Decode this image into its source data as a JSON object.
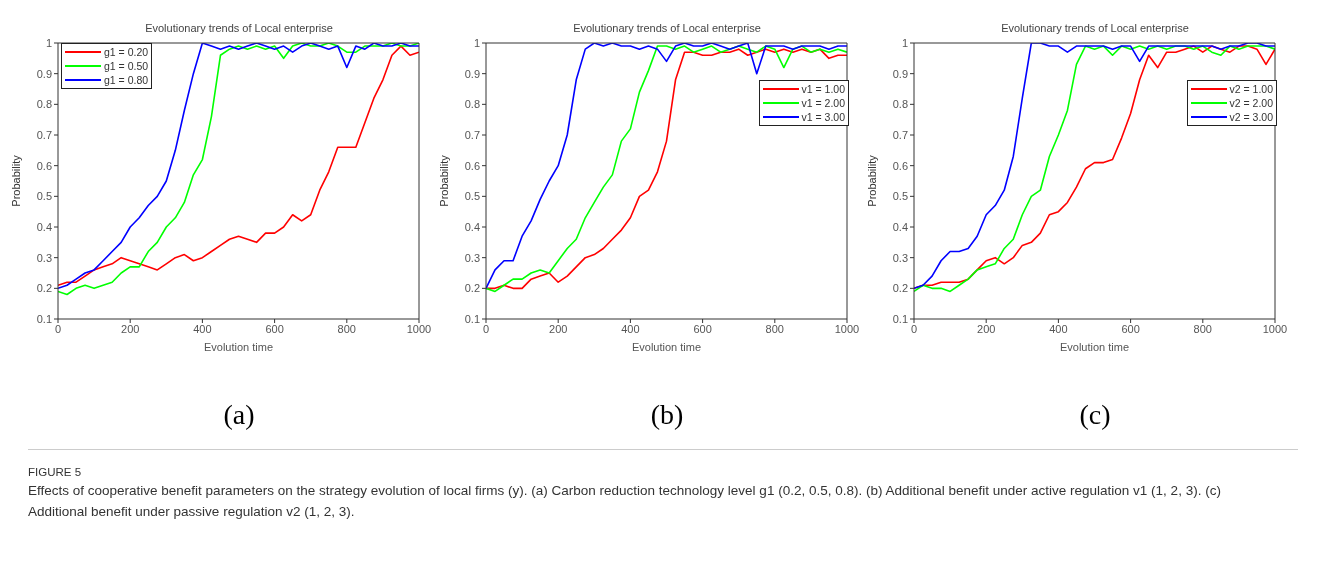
{
  "chart_data": [
    {
      "type": "line",
      "title": "Evolutionary trends of Local enterprise",
      "xlabel": "Evolution time",
      "ylabel": "Probability",
      "annotations": [
        "(a)",
        "FIGURE 5",
        "Effects of cooperative benefit parameters on the strategy evolution of local firms (y). (a) Carbon reduction technology level g1 (0.2, 0.5, 0.8). (b) Additional benefit under active regulation v1 (1, 2, 3). (c) Additional benefit under passive regulation v2 (1, 2, 3)."
      ],
      "x": [
        0,
        25,
        50,
        75,
        100,
        125,
        150,
        175,
        200,
        225,
        250,
        275,
        300,
        325,
        350,
        375,
        400,
        425,
        450,
        475,
        500,
        525,
        550,
        575,
        600,
        625,
        650,
        675,
        700,
        725,
        750,
        775,
        800,
        825,
        850,
        875,
        900,
        925,
        950,
        975,
        1000
      ],
      "xlim": [
        0,
        1000
      ],
      "xticks": [
        0,
        200,
        400,
        600,
        800,
        1000
      ],
      "ylim": [
        0.1,
        1
      ],
      "yticks": [
        0.1,
        0.2,
        0.3,
        0.4,
        0.5,
        0.6,
        0.7,
        0.8,
        0.9,
        1
      ],
      "grid": false,
      "legend": "top left",
      "marker": "none",
      "line_style": "solid",
      "series": [
        {
          "name": "g1 = 0.20",
          "color": "#ff0000",
          "values": [
            0.21,
            0.22,
            0.22,
            0.24,
            0.26,
            0.27,
            0.28,
            0.3,
            0.29,
            0.28,
            0.27,
            0.26,
            0.28,
            0.3,
            0.31,
            0.29,
            0.3,
            0.32,
            0.34,
            0.36,
            0.37,
            0.36,
            0.35,
            0.38,
            0.38,
            0.4,
            0.44,
            0.42,
            0.44,
            0.52,
            0.58,
            0.66,
            0.66,
            0.66,
            0.74,
            0.82,
            0.88,
            0.96,
            0.99,
            0.96,
            0.97
          ]
        },
        {
          "name": "g1 = 0.50",
          "color": "#00ff00",
          "values": [
            0.19,
            0.18,
            0.2,
            0.21,
            0.2,
            0.21,
            0.22,
            0.25,
            0.27,
            0.27,
            0.32,
            0.35,
            0.4,
            0.43,
            0.48,
            0.57,
            0.62,
            0.76,
            0.96,
            0.98,
            0.99,
            0.98,
            0.99,
            0.98,
            0.99,
            0.95,
            0.99,
            1,
            0.99,
            0.99,
            1,
            0.99,
            0.97,
            0.97,
            0.99,
            0.99,
            0.99,
            1,
            0.99,
            0.99,
            1
          ]
        },
        {
          "name": "g1 = 0.80",
          "color": "#0000ff",
          "values": [
            0.2,
            0.21,
            0.23,
            0.25,
            0.26,
            0.29,
            0.32,
            0.35,
            0.4,
            0.43,
            0.47,
            0.5,
            0.55,
            0.65,
            0.78,
            0.9,
            1,
            0.99,
            0.98,
            0.99,
            0.98,
            0.99,
            1,
            0.99,
            0.98,
            0.99,
            0.97,
            0.99,
            1,
            0.99,
            0.98,
            0.99,
            0.92,
            0.99,
            0.98,
            1,
            0.99,
            0.99,
            1,
            0.99,
            0.99
          ]
        }
      ]
    },
    {
      "type": "line",
      "title": "Evolutionary trends of Local enterprise",
      "xlabel": "Evolution time",
      "ylabel": "Probability",
      "annotations": [
        "(b)"
      ],
      "x": [
        0,
        25,
        50,
        75,
        100,
        125,
        150,
        175,
        200,
        225,
        250,
        275,
        300,
        325,
        350,
        375,
        400,
        425,
        450,
        475,
        500,
        525,
        550,
        575,
        600,
        625,
        650,
        675,
        700,
        725,
        750,
        775,
        800,
        825,
        850,
        875,
        900,
        925,
        950,
        975,
        1000
      ],
      "xlim": [
        0,
        1000
      ],
      "xticks": [
        0,
        200,
        400,
        600,
        800,
        1000
      ],
      "ylim": [
        0.1,
        1
      ],
      "yticks": [
        0.1,
        0.2,
        0.3,
        0.4,
        0.5,
        0.6,
        0.7,
        0.8,
        0.9,
        1
      ],
      "grid": false,
      "legend": "right",
      "marker": "none",
      "line_style": "solid",
      "series": [
        {
          "name": "v1 = 1.00",
          "color": "#ff0000",
          "values": [
            0.2,
            0.2,
            0.21,
            0.2,
            0.2,
            0.23,
            0.24,
            0.25,
            0.22,
            0.24,
            0.27,
            0.3,
            0.31,
            0.33,
            0.36,
            0.39,
            0.43,
            0.5,
            0.52,
            0.58,
            0.68,
            0.88,
            0.97,
            0.97,
            0.96,
            0.96,
            0.97,
            0.97,
            0.98,
            0.96,
            0.97,
            0.98,
            0.97,
            0.98,
            0.97,
            0.98,
            0.97,
            0.98,
            0.95,
            0.96,
            0.96
          ]
        },
        {
          "name": "v1 = 2.00",
          "color": "#00ff00",
          "values": [
            0.2,
            0.19,
            0.21,
            0.23,
            0.23,
            0.25,
            0.26,
            0.25,
            0.29,
            0.33,
            0.36,
            0.43,
            0.48,
            0.53,
            0.57,
            0.68,
            0.72,
            0.84,
            0.91,
            0.99,
            0.99,
            0.98,
            0.99,
            0.97,
            0.98,
            0.99,
            0.97,
            0.98,
            0.99,
            0.98,
            0.97,
            0.99,
            0.98,
            0.92,
            0.98,
            0.99,
            0.97,
            0.98,
            0.97,
            0.98,
            0.97
          ]
        },
        {
          "name": "v1 = 3.00",
          "color": "#0000ff",
          "values": [
            0.2,
            0.26,
            0.29,
            0.29,
            0.37,
            0.42,
            0.49,
            0.55,
            0.6,
            0.7,
            0.88,
            0.98,
            1,
            0.99,
            1,
            0.99,
            0.99,
            0.98,
            0.99,
            0.98,
            0.94,
            0.99,
            1,
            0.99,
            0.99,
            1,
            0.99,
            0.98,
            0.99,
            1,
            0.9,
            0.99,
            0.99,
            0.99,
            0.98,
            0.99,
            0.99,
            0.99,
            0.98,
            0.99,
            0.99
          ]
        }
      ]
    },
    {
      "type": "line",
      "title": "Evolutionary trends of Local enterprise",
      "xlabel": "Evolution time",
      "ylabel": "Probability",
      "annotations": [
        "(c)"
      ],
      "x": [
        0,
        25,
        50,
        75,
        100,
        125,
        150,
        175,
        200,
        225,
        250,
        275,
        300,
        325,
        350,
        375,
        400,
        425,
        450,
        475,
        500,
        525,
        550,
        575,
        600,
        625,
        650,
        675,
        700,
        725,
        750,
        775,
        800,
        825,
        850,
        875,
        900,
        925,
        950,
        975,
        1000
      ],
      "xlim": [
        0,
        1000
      ],
      "xticks": [
        0,
        200,
        400,
        600,
        800,
        1000
      ],
      "ylim": [
        0.1,
        1
      ],
      "yticks": [
        0.1,
        0.2,
        0.3,
        0.4,
        0.5,
        0.6,
        0.7,
        0.8,
        0.9,
        1
      ],
      "grid": false,
      "legend": "right",
      "marker": "none",
      "line_style": "solid",
      "series": [
        {
          "name": "v2 = 1.00",
          "color": "#ff0000",
          "values": [
            0.2,
            0.21,
            0.21,
            0.22,
            0.22,
            0.22,
            0.23,
            0.26,
            0.29,
            0.3,
            0.28,
            0.3,
            0.34,
            0.35,
            0.38,
            0.44,
            0.45,
            0.48,
            0.53,
            0.59,
            0.61,
            0.61,
            0.62,
            0.69,
            0.77,
            0.88,
            0.96,
            0.92,
            0.97,
            0.97,
            0.98,
            0.99,
            0.97,
            0.99,
            0.98,
            0.97,
            0.99,
            0.99,
            0.98,
            0.93,
            0.98
          ]
        },
        {
          "name": "v2 = 2.00",
          "color": "#00ff00",
          "values": [
            0.19,
            0.21,
            0.2,
            0.2,
            0.19,
            0.21,
            0.23,
            0.26,
            0.27,
            0.28,
            0.33,
            0.36,
            0.44,
            0.5,
            0.52,
            0.63,
            0.7,
            0.78,
            0.93,
            0.99,
            0.98,
            0.99,
            0.96,
            0.99,
            0.98,
            0.99,
            0.98,
            0.99,
            0.98,
            0.99,
            0.99,
            0.98,
            0.99,
            0.97,
            0.96,
            0.99,
            0.98,
            0.99,
            0.99,
            0.99,
            0.98
          ]
        },
        {
          "name": "v2 = 3.00",
          "color": "#0000ff",
          "values": [
            0.2,
            0.21,
            0.24,
            0.29,
            0.32,
            0.32,
            0.33,
            0.37,
            0.44,
            0.47,
            0.52,
            0.63,
            0.82,
            1,
            1,
            0.99,
            0.99,
            0.97,
            0.99,
            0.99,
            0.99,
            0.99,
            0.98,
            0.99,
            0.99,
            0.94,
            0.99,
            0.99,
            0.99,
            0.99,
            0.99,
            0.99,
            0.99,
            0.99,
            0.98,
            0.99,
            0.99,
            1,
            1,
            0.99,
            0.99
          ]
        }
      ]
    }
  ]
}
